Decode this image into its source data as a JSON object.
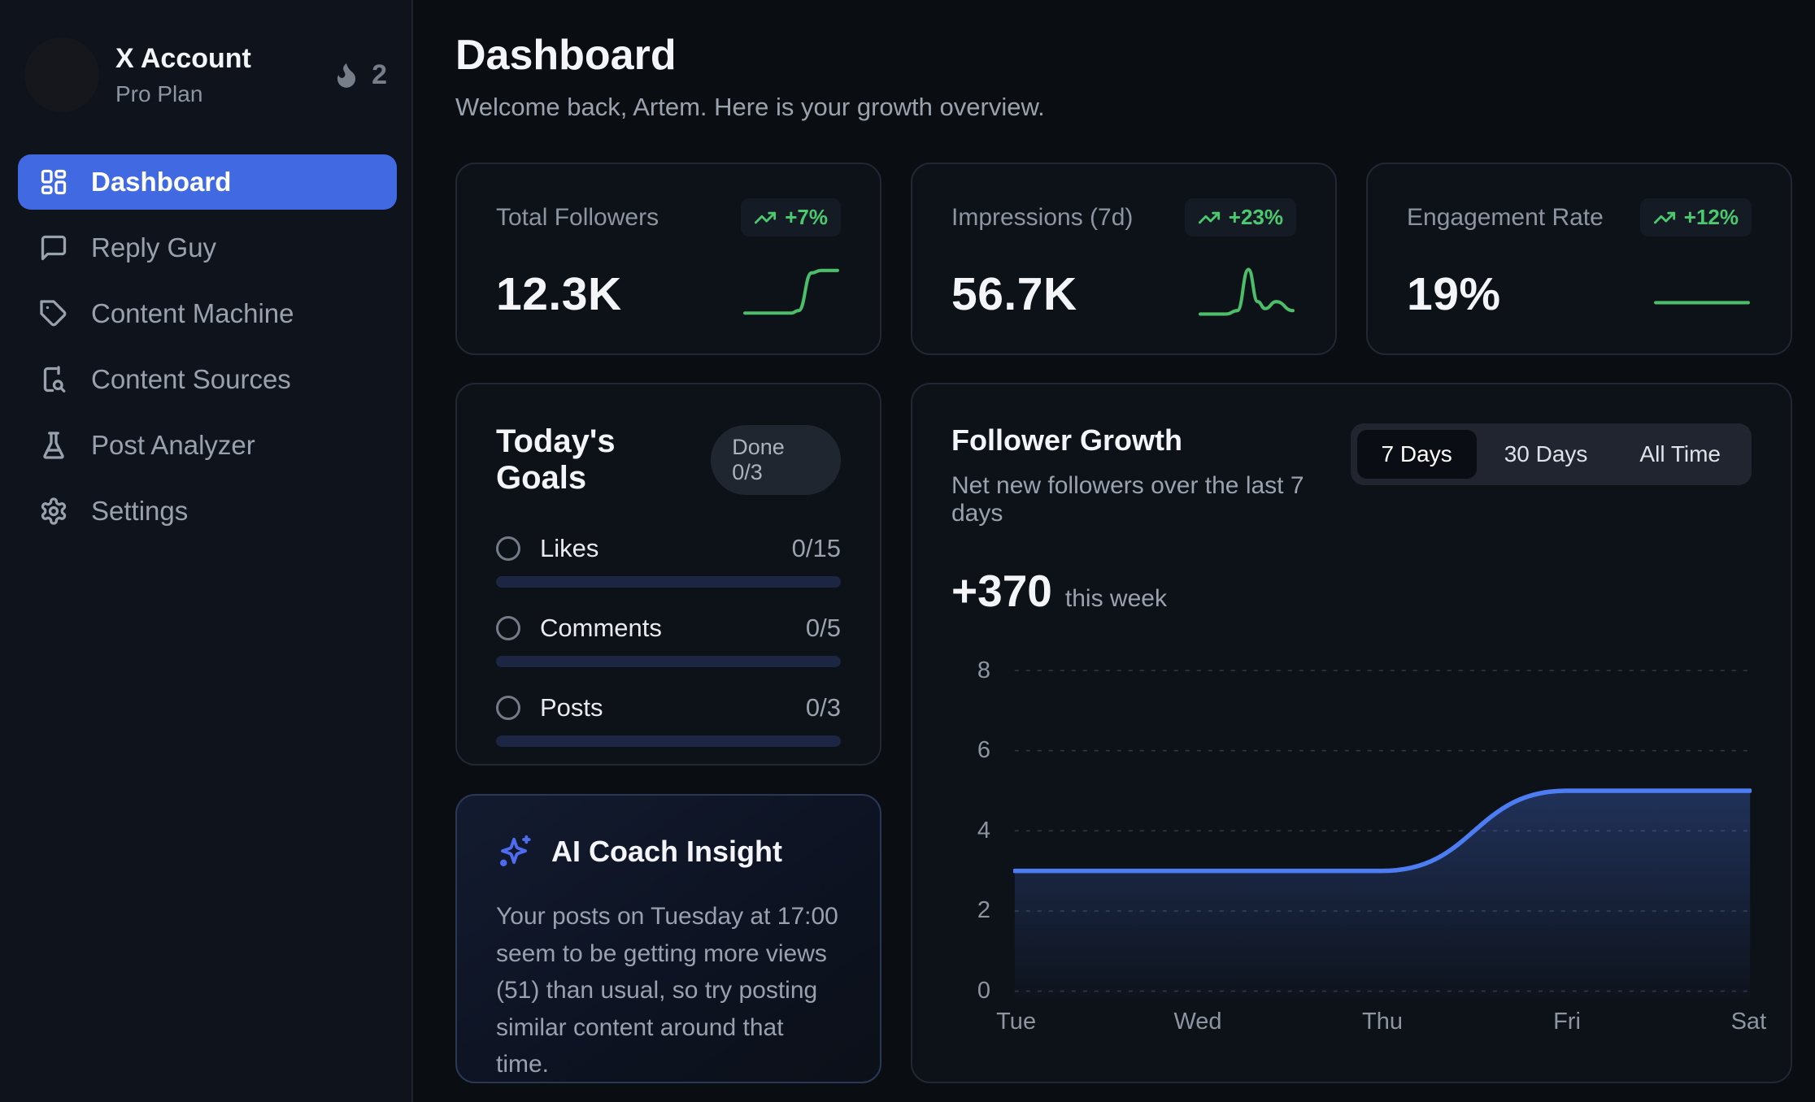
{
  "colors": {
    "accent": "#4169e1",
    "green_text": "#4bc96f",
    "green_line": "#4cbd68",
    "chart_line": "#4d7df2"
  },
  "sidebar": {
    "account": {
      "name": "X Account",
      "plan": "Pro Plan",
      "streak_count": "2"
    },
    "nav": [
      {
        "label": "Dashboard"
      },
      {
        "label": "Reply Guy"
      },
      {
        "label": "Content Machine"
      },
      {
        "label": "Content Sources"
      },
      {
        "label": "Post Analyzer"
      },
      {
        "label": "Settings"
      }
    ]
  },
  "header": {
    "title": "Dashboard",
    "subtitle": "Welcome back, Artem. Here is your growth overview."
  },
  "stats": [
    {
      "label": "Total Followers",
      "delta": "+7%",
      "value": "12.3K",
      "spark": [
        [
          0,
          0.07
        ],
        [
          0.5,
          0.07
        ],
        [
          0.58,
          0.12
        ],
        [
          0.72,
          0.88
        ],
        [
          0.82,
          0.93
        ],
        [
          1,
          0.93
        ]
      ]
    },
    {
      "label": "Impressions (7d)",
      "delta": "+23%",
      "value": "56.7K",
      "spark": [
        [
          0,
          0.05
        ],
        [
          0.28,
          0.05
        ],
        [
          0.4,
          0.12
        ],
        [
          0.52,
          0.95
        ],
        [
          0.62,
          0.3
        ],
        [
          0.7,
          0.16
        ],
        [
          0.82,
          0.3
        ],
        [
          1,
          0.12
        ]
      ]
    },
    {
      "label": "Engagement Rate",
      "delta": "+12%",
      "value": "19%",
      "spark": [
        [
          0,
          0.28
        ],
        [
          1,
          0.28
        ]
      ]
    }
  ],
  "goals": {
    "title": "Today's Goals",
    "badge": "Done 0/3",
    "items": [
      {
        "label": "Likes",
        "value": "0/15",
        "progress": 0
      },
      {
        "label": "Comments",
        "value": "0/5",
        "progress": 0
      },
      {
        "label": "Posts",
        "value": "0/3",
        "progress": 0
      }
    ]
  },
  "ai_insight": {
    "title": "AI Coach Insight",
    "body": "Your posts on Tuesday at 17:00 seem to be getting more views (51) than usual, so try posting similar content around that time."
  },
  "growth": {
    "title": "Follower Growth",
    "subtitle": "Net new followers over the last 7 days",
    "tabs": [
      "7 Days",
      "30 Days",
      "All Time"
    ],
    "active_tab": "7 Days",
    "highlight_value": "+370",
    "highlight_suffix": "this week"
  },
  "chart_data": {
    "type": "area",
    "title": "Follower Growth",
    "x": [
      "Tue",
      "Wed",
      "Thu",
      "Fri",
      "Sat"
    ],
    "values": [
      3,
      3,
      3,
      5,
      5
    ],
    "ylim": [
      0,
      8
    ],
    "yticks": [
      8,
      6,
      4,
      2,
      0
    ],
    "grid": "dashed-horizontal",
    "legend": "none",
    "line_color": "#4d7df2"
  }
}
